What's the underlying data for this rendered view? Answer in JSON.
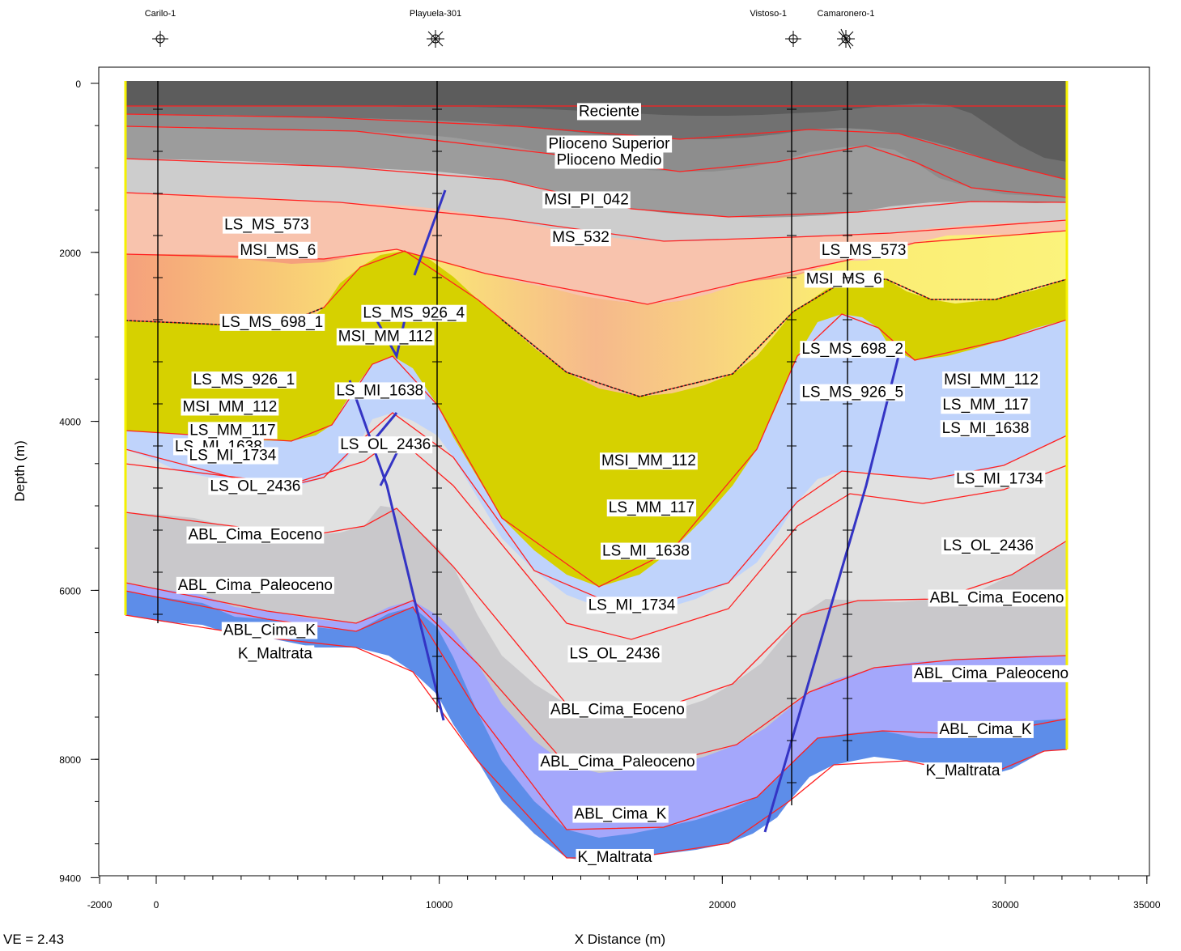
{
  "chart_data": {
    "type": "cross_section",
    "title": "",
    "xlabel": "X Distance (m)",
    "ylabel": "Depth (m)",
    "ve_note": "VE = 2.43",
    "xlim": [
      -2000,
      35000
    ],
    "ylim": [
      0,
      9400
    ],
    "x_ticks": [
      "-2000",
      "0",
      "10000",
      "20000",
      "30000",
      "35000"
    ],
    "y_ticks": [
      "0",
      "2000",
      "4000",
      "6000",
      "8000",
      "9400"
    ],
    "wells": [
      {
        "name": "Carilo-1",
        "x": 0,
        "symbol": "dry-well"
      },
      {
        "name": "Playuela-301",
        "x": 10000,
        "symbol": "gas-well"
      },
      {
        "name": "Vistoso-1",
        "x": 22500,
        "symbol": "dry-well"
      },
      {
        "name": "Camaronero-1",
        "x": 24500,
        "symbol": "gas-abandoned-well"
      }
    ],
    "colors": {
      "reciente": "#5c5c5c",
      "plioceno": "#777777",
      "msi_pl": "#9c9c9c",
      "ms_532": "#cdcdcd",
      "ls_ms_573": "#f6a98e",
      "ls_ms_698": "#f5a07c",
      "upper_yellow": "#fbec72",
      "mm_yellow": "#d6d100",
      "ol": "#bfd3fb",
      "eoceno": "#e1e1e1",
      "paleoceno": "#c9c8cb",
      "cima_k": "#a4a7fb",
      "maltrata": "#5d8de9",
      "horizon": "#ff2020",
      "fault": "#3434c4",
      "border": "#f4f000"
    },
    "labels": [
      {
        "text": "Reciente",
        "x": 16000,
        "y": 150
      },
      {
        "text": "Plioceno Superior",
        "x": 16000,
        "y": 330
      },
      {
        "text": "Plioceno Medio",
        "x": 16000,
        "y": 420
      },
      {
        "text": "MSI_PI_042",
        "x": 15200,
        "y": 640
      },
      {
        "text": "MS_532",
        "x": 15000,
        "y": 850
      },
      {
        "text": "LS_MS_573",
        "x": 3900,
        "y": 780
      },
      {
        "text": "MSI_MS_6",
        "x": 4300,
        "y": 920
      },
      {
        "text": "LS_MS_698_1",
        "x": 4100,
        "y": 1320
      },
      {
        "text": "LS_MS_926_1",
        "x": 3100,
        "y": 1640
      },
      {
        "text": "MSI_MM_112",
        "x": 2600,
        "y": 1790
      },
      {
        "text": "LS_MM_117",
        "x": 2700,
        "y": 1920
      },
      {
        "text": "LS_MI_1638",
        "x": 2200,
        "y": 2010
      },
      {
        "text": "LS_MI_1734",
        "x": 2700,
        "y": 2060
      },
      {
        "text": "LS_OL_2436",
        "x": 3500,
        "y": 2230
      },
      {
        "text": "ABL_Cima_Eoceno",
        "x": 3500,
        "y": 2500
      },
      {
        "text": "ABL_Cima_Paleoceno",
        "x": 3500,
        "y": 2780
      },
      {
        "text": "ABL_Cima_K",
        "x": 4000,
        "y": 3030
      },
      {
        "text": "K_Maltrata",
        "x": 4200,
        "y": 3160
      },
      {
        "text": "LS_MS_926_4",
        "x": 9100,
        "y": 1270
      },
      {
        "text": "MSI_MM_112",
        "x": 8100,
        "y": 1400
      },
      {
        "text": "LS_MI_1638",
        "x": 7900,
        "y": 1700
      },
      {
        "text": "LS_OL_2436",
        "x": 8100,
        "y": 2000
      },
      {
        "text": "LS_MS_573",
        "x": 25000,
        "y": 920
      },
      {
        "text": "MSI_MS_6",
        "x": 24300,
        "y": 1080
      },
      {
        "text": "LS_MS_698_2",
        "x": 24600,
        "y": 1470
      },
      {
        "text": "LS_MS_926_5",
        "x": 24600,
        "y": 1710
      },
      {
        "text": "MSI_MM_112",
        "x": 17400,
        "y": 2090
      },
      {
        "text": "LS_MM_117",
        "x": 17500,
        "y": 2350
      },
      {
        "text": "LS_MI_1638",
        "x": 17300,
        "y": 2590
      },
      {
        "text": "LS_MI_1734",
        "x": 16800,
        "y": 2890
      },
      {
        "text": "LS_OL_2436",
        "x": 16200,
        "y": 3160
      },
      {
        "text": "ABL_Cima_Eoceno",
        "x": 16300,
        "y": 3470
      },
      {
        "text": "ABL_Cima_Paleoceno",
        "x": 16300,
        "y": 3760
      },
      {
        "text": "ABL_Cima_K",
        "x": 16400,
        "y": 4050
      },
      {
        "text": "K_Maltrata",
        "x": 16200,
        "y": 4290
      },
      {
        "text": "MSI_MM_112",
        "x": 29500,
        "y": 1640
      },
      {
        "text": "LS_MM_117",
        "x": 29300,
        "y": 1780
      },
      {
        "text": "LS_MI_1638",
        "x": 29300,
        "y": 1910
      },
      {
        "text": "LS_MI_1734",
        "x": 29800,
        "y": 2190
      },
      {
        "text": "LS_OL_2436",
        "x": 29400,
        "y": 2560
      },
      {
        "text": "ABL_Cima_Eoceno",
        "x": 29700,
        "y": 2850
      },
      {
        "text": "ABL_Cima_Paleoceno",
        "x": 29500,
        "y": 3270
      },
      {
        "text": "ABL_Cima_K",
        "x": 29300,
        "y": 3580
      },
      {
        "text": "K_Maltrata",
        "x": 28500,
        "y": 3810
      }
    ]
  }
}
